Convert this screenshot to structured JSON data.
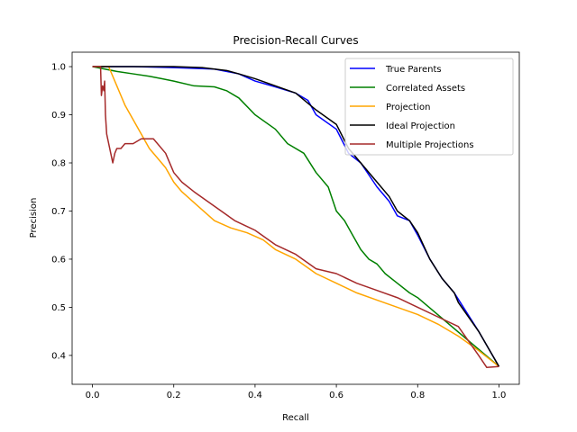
{
  "chart_data": {
    "type": "line",
    "title": "Precision-Recall Curves",
    "xlabel": "Recall",
    "ylabel": "Precision",
    "xlim": [
      -0.05,
      1.05
    ],
    "ylim": [
      0.34,
      1.03
    ],
    "xticks": [
      0.0,
      0.2,
      0.4,
      0.6,
      0.8,
      1.0
    ],
    "xtick_labels": [
      "0.0",
      "0.2",
      "0.4",
      "0.6",
      "0.8",
      "1.0"
    ],
    "yticks": [
      0.4,
      0.5,
      0.6,
      0.7,
      0.8,
      0.9,
      1.0
    ],
    "ytick_labels": [
      "0.4",
      "0.5",
      "0.6",
      "0.7",
      "0.8",
      "0.9",
      "1.0"
    ],
    "grid": false,
    "legend_position": "top-right",
    "series": [
      {
        "name": "True Parents",
        "color": "#0000ff",
        "x": [
          0.0,
          0.1,
          0.2,
          0.3,
          0.36,
          0.4,
          0.45,
          0.5,
          0.53,
          0.55,
          0.6,
          0.63,
          0.66,
          0.7,
          0.73,
          0.75,
          0.78,
          0.8,
          0.83,
          0.86,
          0.89,
          0.92,
          0.95,
          1.0
        ],
        "y": [
          1.0,
          1.0,
          0.998,
          0.995,
          0.985,
          0.97,
          0.958,
          0.945,
          0.93,
          0.9,
          0.87,
          0.82,
          0.8,
          0.75,
          0.72,
          0.69,
          0.68,
          0.65,
          0.6,
          0.56,
          0.53,
          0.49,
          0.45,
          0.377
        ]
      },
      {
        "name": "Correlated Assets",
        "color": "#008000",
        "x": [
          0.0,
          0.06,
          0.1,
          0.14,
          0.17,
          0.2,
          0.25,
          0.3,
          0.33,
          0.36,
          0.4,
          0.45,
          0.48,
          0.52,
          0.55,
          0.58,
          0.6,
          0.62,
          0.64,
          0.66,
          0.68,
          0.7,
          0.72,
          0.75,
          0.78,
          0.8,
          1.0
        ],
        "y": [
          1.0,
          0.99,
          0.985,
          0.98,
          0.975,
          0.97,
          0.96,
          0.958,
          0.95,
          0.935,
          0.9,
          0.87,
          0.84,
          0.82,
          0.78,
          0.75,
          0.7,
          0.68,
          0.65,
          0.62,
          0.6,
          0.59,
          0.57,
          0.55,
          0.53,
          0.52,
          0.377
        ]
      },
      {
        "name": "Projection",
        "color": "#ffa500",
        "x": [
          0.0,
          0.04,
          0.05,
          0.06,
          0.07,
          0.08,
          0.1,
          0.12,
          0.14,
          0.16,
          0.18,
          0.2,
          0.22,
          0.26,
          0.3,
          0.34,
          0.38,
          0.42,
          0.45,
          0.5,
          0.55,
          0.6,
          0.65,
          0.7,
          0.75,
          0.8,
          0.85,
          0.9,
          0.95,
          1.0
        ],
        "y": [
          1.0,
          1.0,
          0.98,
          0.96,
          0.94,
          0.92,
          0.89,
          0.86,
          0.83,
          0.81,
          0.79,
          0.76,
          0.74,
          0.71,
          0.68,
          0.665,
          0.655,
          0.64,
          0.62,
          0.6,
          0.57,
          0.55,
          0.53,
          0.515,
          0.5,
          0.485,
          0.465,
          0.44,
          0.41,
          0.377
        ]
      },
      {
        "name": "Ideal Projection",
        "color": "#000000",
        "x": [
          0.0,
          0.1,
          0.2,
          0.27,
          0.3,
          0.33,
          0.36,
          0.4,
          0.45,
          0.5,
          0.55,
          0.6,
          0.63,
          0.66,
          0.7,
          0.73,
          0.75,
          0.78,
          0.8,
          0.83,
          0.86,
          0.89,
          0.9,
          0.95,
          1.0
        ],
        "y": [
          1.0,
          1.0,
          1.0,
          0.998,
          0.995,
          0.992,
          0.985,
          0.975,
          0.96,
          0.945,
          0.91,
          0.88,
          0.83,
          0.8,
          0.76,
          0.73,
          0.7,
          0.68,
          0.655,
          0.6,
          0.56,
          0.53,
          0.51,
          0.45,
          0.377
        ]
      },
      {
        "name": "Multiple Projections",
        "color": "#a52a2a",
        "x": [
          0.0,
          0.02,
          0.022,
          0.025,
          0.028,
          0.03,
          0.032,
          0.035,
          0.04,
          0.045,
          0.05,
          0.055,
          0.06,
          0.07,
          0.08,
          0.1,
          0.12,
          0.15,
          0.18,
          0.2,
          0.22,
          0.25,
          0.3,
          0.35,
          0.4,
          0.45,
          0.5,
          0.55,
          0.6,
          0.65,
          0.7,
          0.75,
          0.8,
          0.85,
          0.9,
          0.95,
          0.97,
          1.0
        ],
        "y": [
          1.0,
          1.0,
          0.94,
          0.96,
          0.95,
          0.97,
          0.9,
          0.86,
          0.84,
          0.82,
          0.8,
          0.82,
          0.83,
          0.83,
          0.84,
          0.84,
          0.85,
          0.85,
          0.82,
          0.78,
          0.76,
          0.74,
          0.71,
          0.68,
          0.66,
          0.63,
          0.61,
          0.58,
          0.57,
          0.55,
          0.535,
          0.52,
          0.5,
          0.48,
          0.46,
          0.4,
          0.375,
          0.377
        ]
      }
    ]
  }
}
